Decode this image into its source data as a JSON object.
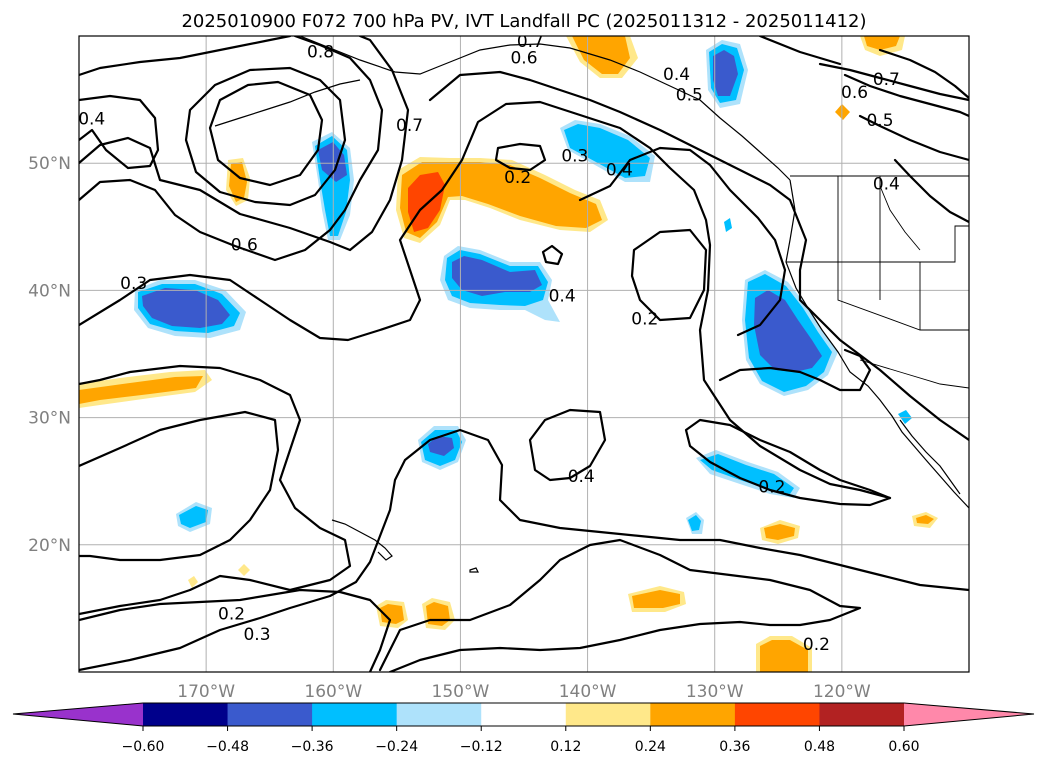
{
  "title": "2025010900 F072 700 hPa PV, IVT Landfall PC (2025011312 - 2025011412)",
  "map": {
    "lon_range": [
      -180,
      -110
    ],
    "lat_range": [
      10,
      60
    ],
    "lat_labels": [
      "50°N",
      "40°N",
      "30°N",
      "20°N"
    ],
    "lat_values": [
      50,
      40,
      30,
      20
    ],
    "lon_labels": [
      "170°W",
      "160°W",
      "150°W",
      "140°W",
      "130°W",
      "120°W"
    ],
    "lon_values": [
      -170,
      -160,
      -150,
      -140,
      -130,
      -120
    ],
    "contour_labels": [
      {
        "text": "0.8",
        "lon": -161.0,
        "lat": 58.8
      },
      {
        "text": "0.7",
        "lon": -144.5,
        "lat": 59.6
      },
      {
        "text": "0.6",
        "lon": -145.0,
        "lat": 58.3
      },
      {
        "text": "0.4",
        "lon": -133.0,
        "lat": 57.0
      },
      {
        "text": "0.5",
        "lon": -132.0,
        "lat": 55.4
      },
      {
        "text": "0.7",
        "lon": -154.0,
        "lat": 53.0
      },
      {
        "text": "0.4",
        "lon": -179.0,
        "lat": 53.5
      },
      {
        "text": "0.3",
        "lon": -141.0,
        "lat": 50.6
      },
      {
        "text": "0.4",
        "lon": -137.5,
        "lat": 49.5
      },
      {
        "text": "0.2",
        "lon": -145.5,
        "lat": 48.9
      },
      {
        "text": "0.6",
        "lon": -167.0,
        "lat": 43.6
      },
      {
        "text": "0.3",
        "lon": -175.7,
        "lat": 40.6
      },
      {
        "text": "0.4",
        "lon": -142.0,
        "lat": 39.6
      },
      {
        "text": "0.2",
        "lon": -135.5,
        "lat": 37.8
      },
      {
        "text": "0.4",
        "lon": -140.5,
        "lat": 25.4
      },
      {
        "text": "0.2",
        "lon": -125.5,
        "lat": 24.6
      },
      {
        "text": "0.2",
        "lon": -168.0,
        "lat": 14.6
      },
      {
        "text": "0.3",
        "lon": -166.0,
        "lat": 13.0
      },
      {
        "text": "0.2",
        "lon": -122.0,
        "lat": 12.2
      },
      {
        "text": "0.7",
        "lon": -116.5,
        "lat": 56.6
      },
      {
        "text": "0.6",
        "lon": -119.0,
        "lat": 55.6
      },
      {
        "text": "0.5",
        "lon": -117.0,
        "lat": 53.4
      },
      {
        "text": "0.4",
        "lon": -116.5,
        "lat": 48.4
      }
    ]
  },
  "colorbar": {
    "ticks": [
      "−0.60",
      "−0.48",
      "−0.36",
      "−0.24",
      "−0.12",
      "0.12",
      "0.24",
      "0.36",
      "0.48",
      "0.60"
    ],
    "tick_values": [
      -0.6,
      -0.48,
      -0.36,
      -0.24,
      -0.12,
      0.12,
      0.24,
      0.36,
      0.48,
      0.6
    ],
    "under_color": "#9932cc",
    "over_color": "#ff88aa",
    "colors": [
      "#00008b",
      "#3a5acd",
      "#00bfff",
      "#aee2fb",
      "#ffffff",
      "#ffe88a",
      "#ffa500",
      "#ff4500",
      "#b22222"
    ]
  }
}
